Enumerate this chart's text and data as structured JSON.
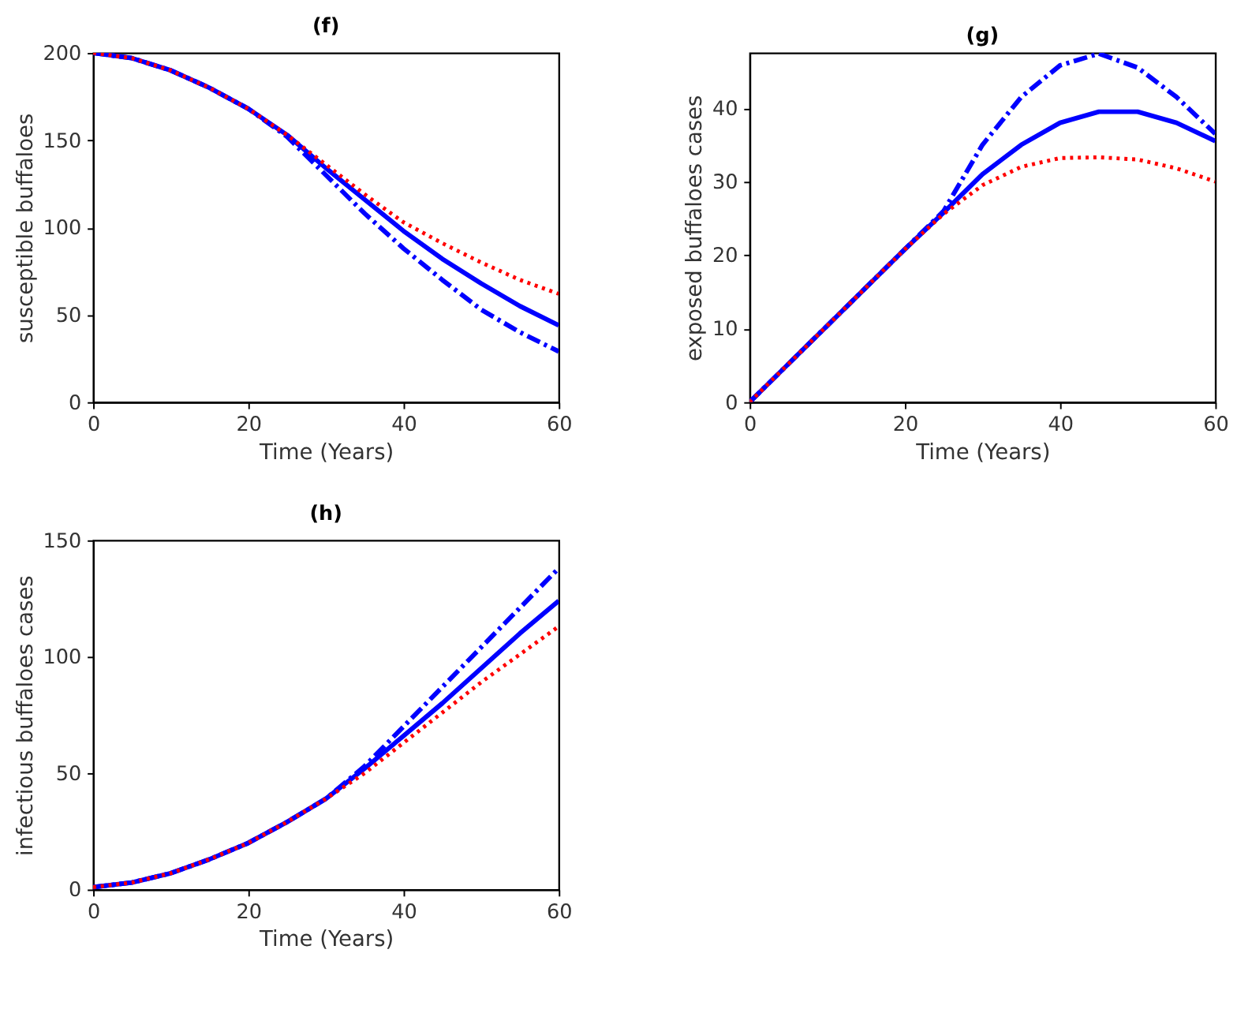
{
  "chart_data": [
    {
      "type": "line",
      "title": "(f)",
      "xlabel": "Time (Years)",
      "ylabel": "susceptible buffaloes",
      "x": [
        0,
        5,
        10,
        15,
        20,
        25,
        30,
        35,
        40,
        45,
        50,
        55,
        60
      ],
      "xlim": [
        0,
        60
      ],
      "xticks": [
        0,
        20,
        40,
        60
      ],
      "ylim": [
        0,
        200
      ],
      "yticks": [
        0,
        50,
        100,
        150,
        200
      ],
      "grid": false,
      "series": [
        {
          "color": "#ff0000",
          "line_style": "dotted",
          "values": [
            200,
            197,
            190,
            180,
            168,
            153,
            136,
            119,
            103,
            91,
            80,
            70,
            62
          ]
        },
        {
          "color": "#0000ff",
          "line_style": "solid",
          "values": [
            200,
            197,
            190,
            180,
            168,
            153,
            134,
            116,
            98,
            82,
            68,
            55,
            44
          ]
        },
        {
          "color": "#0000ff",
          "line_style": "dashdot",
          "values": [
            200,
            197,
            190,
            180,
            168,
            152,
            130,
            108,
            88,
            70,
            53,
            40,
            29
          ]
        }
      ]
    },
    {
      "type": "line",
      "title": "(g)",
      "xlabel": "Time (Years)",
      "ylabel": "exposed buffaloes cases",
      "x": [
        0,
        5,
        10,
        15,
        20,
        25,
        30,
        35,
        40,
        45,
        50,
        55,
        60
      ],
      "xlim": [
        0,
        60
      ],
      "xticks": [
        0,
        20,
        40,
        60
      ],
      "ylim": [
        0,
        47.5
      ],
      "yticks": [
        0,
        10,
        20,
        30,
        40
      ],
      "grid": false,
      "series": [
        {
          "color": "#ff0000",
          "line_style": "dotted",
          "values": [
            0,
            5.2,
            10.4,
            15.6,
            20.8,
            25.6,
            29.5,
            32,
            33.2,
            33.3,
            33,
            31.8,
            30
          ]
        },
        {
          "color": "#0000ff",
          "line_style": "solid",
          "values": [
            0,
            5.2,
            10.4,
            15.6,
            20.8,
            25.8,
            31,
            35,
            38,
            39.5,
            39.5,
            38,
            35.5
          ]
        },
        {
          "color": "#0000ff",
          "line_style": "dashdot",
          "values": [
            0,
            5.2,
            10.4,
            15.6,
            20.8,
            26,
            35,
            41.5,
            45.8,
            47.4,
            45.5,
            41.5,
            36.5
          ]
        }
      ]
    },
    {
      "type": "line",
      "title": "(h)",
      "xlabel": "Time (Years)",
      "ylabel": "infectious buffaloes cases",
      "x": [
        0,
        5,
        10,
        15,
        20,
        25,
        30,
        35,
        40,
        45,
        50,
        55,
        60
      ],
      "xlim": [
        0,
        60
      ],
      "xticks": [
        0,
        20,
        40,
        60
      ],
      "ylim": [
        0,
        150
      ],
      "yticks": [
        0,
        50,
        100,
        150
      ],
      "grid": false,
      "series": [
        {
          "color": "#ff0000",
          "line_style": "dotted",
          "values": [
            1,
            3,
            7,
            13,
            20,
            29,
            39,
            50,
            63,
            76,
            89,
            101,
            113
          ]
        },
        {
          "color": "#0000ff",
          "line_style": "solid",
          "values": [
            1,
            3,
            7,
            13,
            20,
            29,
            39,
            52,
            66,
            80,
            95,
            110,
            124
          ]
        },
        {
          "color": "#0000ff",
          "line_style": "dashdot",
          "values": [
            1,
            3,
            7,
            13,
            20,
            29,
            39,
            53,
            70,
            87,
            104,
            121,
            138
          ]
        }
      ]
    }
  ]
}
